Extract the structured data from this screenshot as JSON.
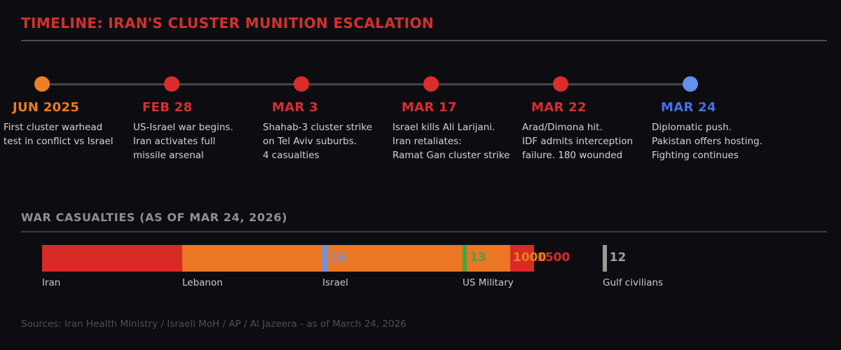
{
  "header": {
    "title": "TIMELINE: IRAN'S CLUSTER MUNITION ESCALATION"
  },
  "timeline": {
    "events": [
      {
        "date": "JUN 2025",
        "date_color": "#e87e1f",
        "dot_color": "#ed8022",
        "desc": "First cluster warhead\ntest in conflict vs Israel"
      },
      {
        "date": "FEB 28",
        "date_color": "#d3302f",
        "dot_color": "#dc2c2c",
        "desc": "US-Israel war begins.\nIran activates full\nmissile arsenal"
      },
      {
        "date": "MAR 3",
        "date_color": "#d3302f",
        "dot_color": "#dc2c2c",
        "desc": "Shahab-3 cluster strike\non Tel Aviv suburbs.\n4 casualties"
      },
      {
        "date": "MAR 17",
        "date_color": "#d3302f",
        "dot_color": "#dc2c2c",
        "desc": "Israel kills Ali Larijani.\nIran retaliates:\nRamat Gan cluster strike"
      },
      {
        "date": "MAR 22",
        "date_color": "#d3302f",
        "dot_color": "#dc2c2c",
        "desc": "Arad/Dimona hit.\nIDF admits interception\nfailure. 180 wounded"
      },
      {
        "date": "MAR 24",
        "date_color": "#4670e4",
        "dot_color": "#6392ee",
        "desc": "Diplomatic push.\nPakistan offers hosting.\nFighting continues"
      }
    ]
  },
  "casualties": {
    "section_title": "WAR CASUALTIES (AS OF MAR 24, 2026)",
    "chart_data": {
      "type": "bar",
      "orientation": "horizontal",
      "style": "offset-overlapping-segments",
      "title": "WAR CASUALTIES (AS OF MAR 24, 2026)",
      "categories": [
        "Iran",
        "Lebanon",
        "Israel",
        "US Military",
        "Gulf civilians"
      ],
      "values": [
        1500,
        1000,
        16,
        13,
        12
      ],
      "bar_colors": [
        "#d92b26",
        "#ec7623",
        "#6495ed",
        "#3fa83f",
        "#9a9a9a"
      ],
      "value_label_colors": [
        "#d92b26",
        "#e87f1f",
        "#8090cc",
        "#46a046",
        "#9aa0a4"
      ],
      "legend": "none",
      "grid": false
    }
  },
  "footer": {
    "text": "Sources: Iran Health Ministry / Israeli MoH / AP / Al Jazeera - as of March 24, 2026"
  }
}
